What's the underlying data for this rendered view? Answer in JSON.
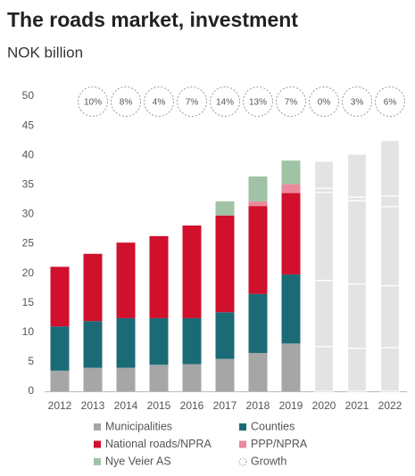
{
  "chart_data": {
    "type": "stacked_bar",
    "title": "The roads market, investment",
    "subtitle": "NOK billion",
    "categories": [
      "2012",
      "2013",
      "2014",
      "2015",
      "2016",
      "2017",
      "2018",
      "2019",
      "2020",
      "2021",
      "2022"
    ],
    "series": [
      {
        "name": "Municipalities",
        "color": "#a6a6a6",
        "values": [
          3.5,
          4.0,
          4.0,
          4.5,
          4.6,
          5.5,
          6.5,
          8.1,
          7.6,
          7.3,
          7.4
        ]
      },
      {
        "name": "Counties",
        "color": "#1b6b77",
        "values": [
          7.5,
          7.9,
          8.4,
          7.9,
          7.8,
          7.9,
          10.0,
          11.7,
          11.2,
          10.9,
          10.5
        ]
      },
      {
        "name": "National roads/NPRA",
        "color": "#d0102c",
        "values": [
          10.1,
          11.4,
          12.8,
          13.9,
          15.7,
          16.4,
          14.9,
          13.8,
          14.9,
          14.1,
          13.4
        ]
      },
      {
        "name": "PPP/NPRA",
        "color": "#ea8a9c",
        "values": [
          0,
          0,
          0,
          0,
          0,
          0,
          0.8,
          1.5,
          0.7,
          0.6,
          1.8
        ]
      },
      {
        "name": "Nye Veier AS",
        "color": "#9fc3a4",
        "values": [
          0,
          0,
          0,
          0,
          0,
          2.4,
          4.2,
          4.0,
          4.6,
          7.3,
          9.4
        ]
      }
    ],
    "forecast_from": "2020",
    "forecast_color": "#e3e3e3",
    "growth": {
      "name": "Growth",
      "values": [
        null,
        10,
        8,
        4,
        7,
        14,
        13,
        7,
        0,
        3,
        6
      ],
      "value_labels": [
        null,
        "10%",
        "8%",
        "4%",
        "7%",
        "14%",
        "13%",
        "7%",
        "0%",
        "3%",
        "6%"
      ]
    },
    "ylim": [
      0,
      50
    ],
    "yticks": [
      0,
      5,
      10,
      15,
      20,
      25,
      30,
      35,
      40,
      45,
      50
    ]
  }
}
